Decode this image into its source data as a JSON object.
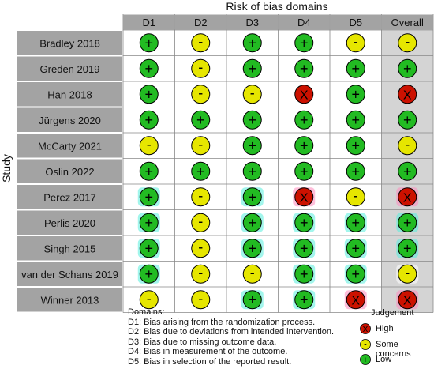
{
  "chart_data": {
    "type": "table",
    "title": "Risk of bias domains",
    "ylabel": "Study",
    "columns": [
      "D1",
      "D2",
      "D3",
      "D4",
      "D5",
      "Overall"
    ],
    "rows": [
      {
        "study": "Bradley 2018",
        "ratings": [
          "low",
          "some",
          "low",
          "low",
          "some",
          "some"
        ]
      },
      {
        "study": "Greden 2019",
        "ratings": [
          "low",
          "some",
          "low",
          "low",
          "low",
          "low"
        ]
      },
      {
        "study": "Han 2018",
        "ratings": [
          "low",
          "some",
          "some",
          "high",
          "low",
          "high"
        ]
      },
      {
        "study": "Jürgens 2020",
        "ratings": [
          "low",
          "low",
          "low",
          "low",
          "low",
          "low"
        ]
      },
      {
        "study": "McCarty 2021",
        "ratings": [
          "some",
          "some",
          "low",
          "low",
          "low",
          "some"
        ]
      },
      {
        "study": "Oslin 2022",
        "ratings": [
          "low",
          "low",
          "low",
          "low",
          "low",
          "low"
        ]
      },
      {
        "study": "Perez 2017",
        "ratings": [
          "low",
          "some",
          "low",
          "high",
          "some",
          "high"
        ]
      },
      {
        "study": "Perlis 2020",
        "ratings": [
          "low",
          "some",
          "low",
          "low",
          "low",
          "low"
        ]
      },
      {
        "study": "Singh 2015",
        "ratings": [
          "low",
          "some",
          "low",
          "low",
          "low",
          "low"
        ]
      },
      {
        "study": "van der Schans 2019",
        "ratings": [
          "low",
          "some",
          "some",
          "low",
          "low",
          "some"
        ]
      },
      {
        "study": "Winner 2013",
        "ratings": [
          "some",
          "some",
          "low",
          "low",
          "high",
          "high"
        ]
      }
    ],
    "symbols": {
      "low": "+",
      "some": "-",
      "high": "X"
    },
    "colors": {
      "low": "#22bb22",
      "some": "#e6e600",
      "high": "#cc1100"
    },
    "footer": {
      "heading": "Domains:",
      "lines": [
        "D1: Bias arising from the randomization process.",
        "D2: Bias due to deviations from intended intervention.",
        "D3: Bias due to missing outcome data.",
        "D4: Bias in measurement of the outcome.",
        "D5: Bias in selection of the reported result."
      ]
    },
    "legend": {
      "title": "Judgement",
      "items": [
        {
          "key": "high",
          "label": "High"
        },
        {
          "key": "some",
          "label": "Some concerns"
        },
        {
          "key": "low",
          "label": "Low"
        }
      ]
    }
  }
}
